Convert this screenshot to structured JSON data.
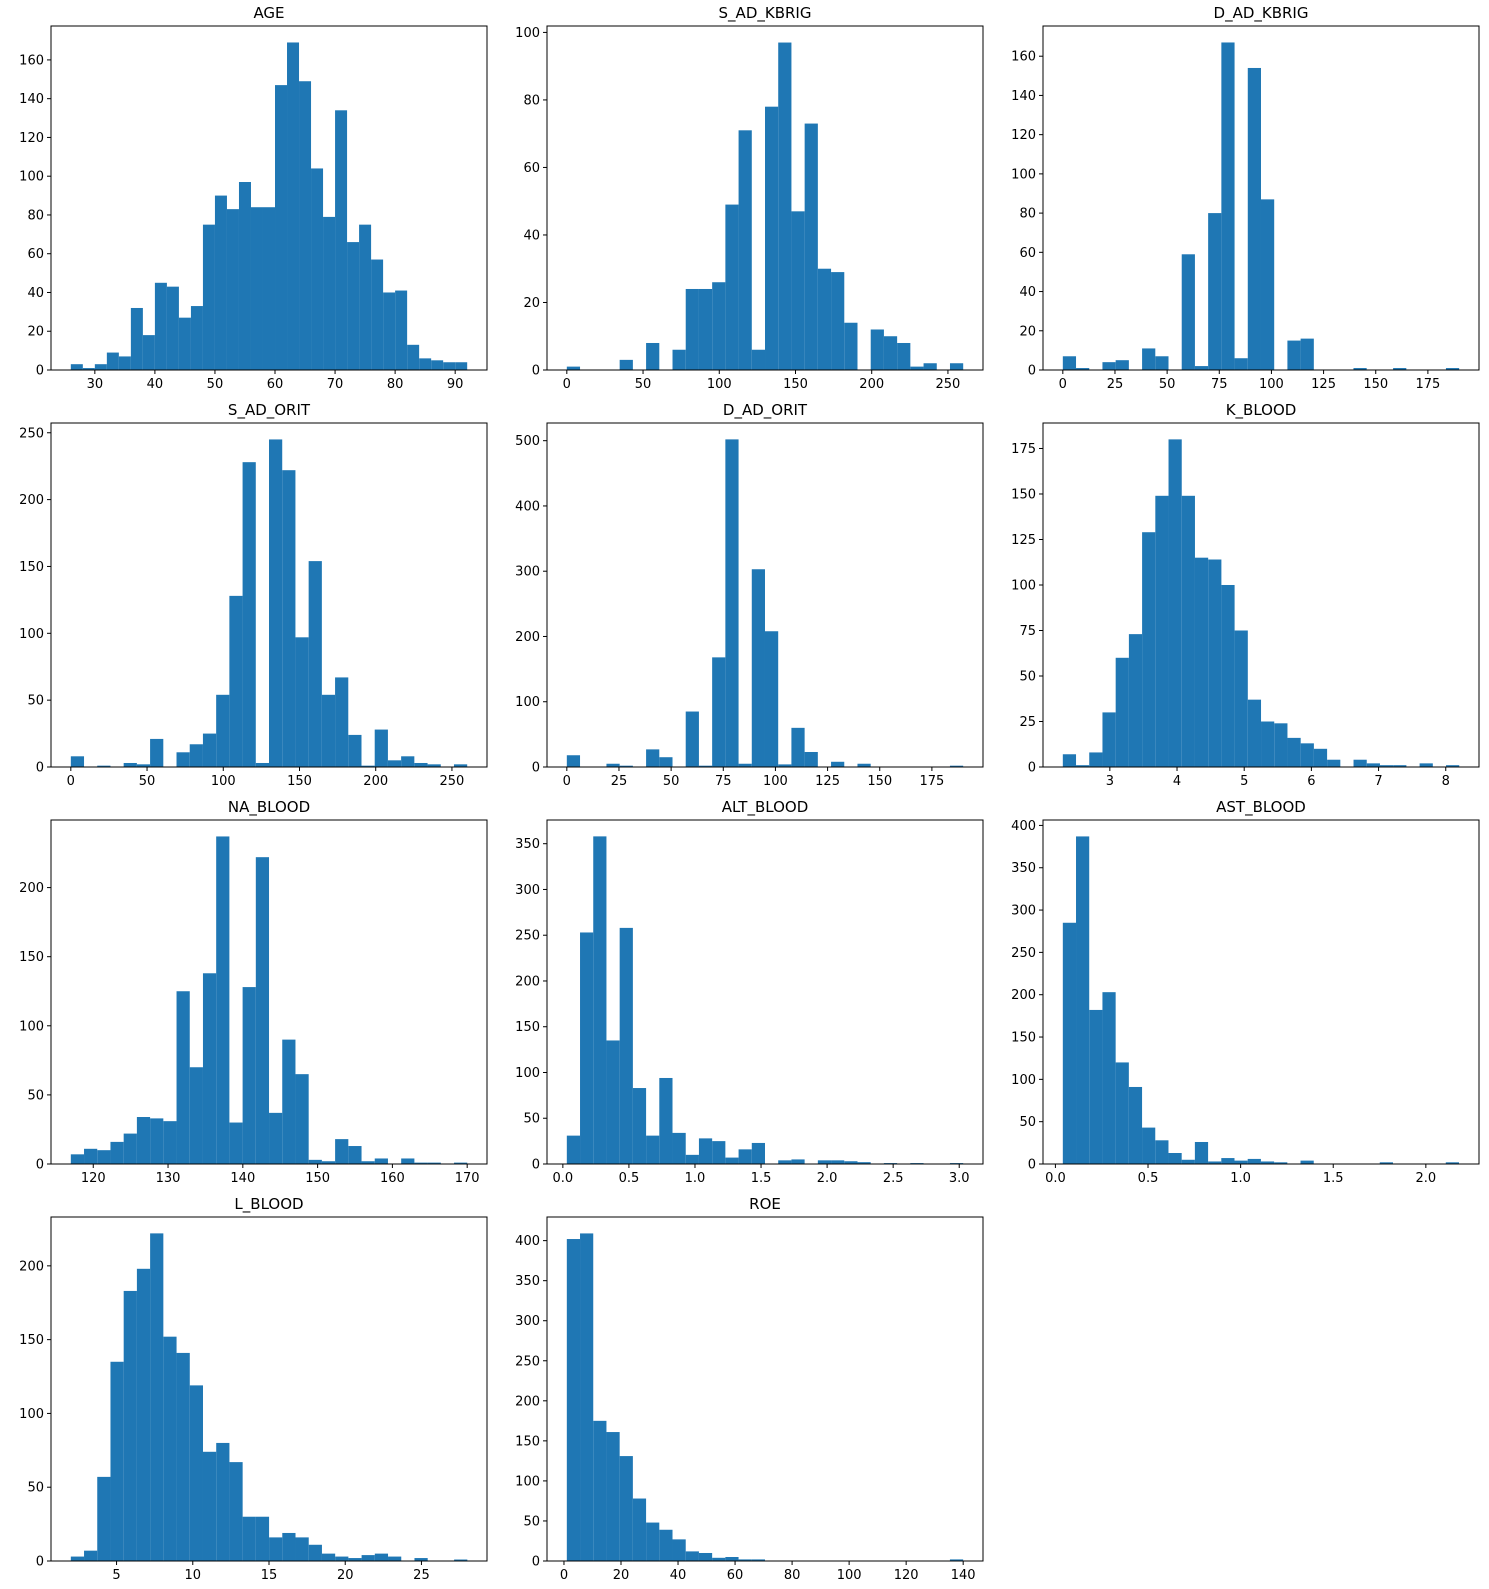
{
  "figure": {
    "background_color": "#ffffff",
    "bar_color": "#1f77b4",
    "axis_color": "#000000",
    "text_color": "#000000",
    "grid": "off",
    "legend": "none",
    "layout": "4 rows x 3 columns, 11 histograms, last cell empty"
  },
  "chart_data": [
    {
      "type": "bar",
      "subtype": "histogram",
      "title": "AGE",
      "bin_start": 26,
      "bin_width": 2,
      "values": [
        3,
        1,
        3,
        9,
        7,
        32,
        18,
        45,
        43,
        27,
        33,
        75,
        90,
        83,
        97,
        84,
        84,
        147,
        169,
        149,
        104,
        79,
        134,
        66,
        75,
        57,
        40,
        41,
        13,
        6,
        5,
        4,
        4
      ],
      "xlim": [
        22.7,
        95.3
      ],
      "ylim": [
        0,
        177.5
      ],
      "xtick_values": [
        30,
        40,
        50,
        60,
        70,
        80,
        90
      ],
      "xtick_labels": [
        "30",
        "40",
        "50",
        "60",
        "70",
        "80",
        "90"
      ],
      "ytick_values": [
        0,
        20,
        40,
        60,
        80,
        100,
        120,
        140,
        160
      ],
      "ytick_labels": [
        "0",
        "20",
        "40",
        "60",
        "80",
        "100",
        "120",
        "140",
        "160"
      ]
    },
    {
      "type": "bar",
      "subtype": "histogram",
      "title": "S_AD_KBRIG",
      "bin_start": 0,
      "bin_width": 8.667,
      "values": [
        1,
        0,
        0,
        0,
        3,
        0,
        8,
        0,
        6,
        24,
        24,
        26,
        49,
        71,
        6,
        78,
        97,
        47,
        73,
        30,
        29,
        14,
        0,
        12,
        10,
        8,
        1,
        2,
        0,
        2
      ],
      "xlim": [
        -13,
        273
      ],
      "ylim": [
        0,
        101.9
      ],
      "xtick_values": [
        0,
        50,
        100,
        150,
        200,
        250
      ],
      "xtick_labels": [
        "0",
        "50",
        "100",
        "150",
        "200",
        "250"
      ],
      "ytick_values": [
        0,
        20,
        40,
        60,
        80,
        100
      ],
      "ytick_labels": [
        "0",
        "20",
        "40",
        "60",
        "80",
        "100"
      ]
    },
    {
      "type": "bar",
      "subtype": "histogram",
      "title": "D_AD_KBRIG",
      "bin_start": 0,
      "bin_width": 6.333,
      "values": [
        7,
        1,
        0,
        4,
        5,
        0,
        11,
        7,
        0,
        59,
        2,
        80,
        167,
        6,
        154,
        87,
        0,
        15,
        16,
        0,
        0,
        0,
        1,
        0,
        0,
        1,
        0,
        0,
        0,
        1
      ],
      "xlim": [
        -9.5,
        199.5
      ],
      "ylim": [
        0,
        175.4
      ],
      "xtick_values": [
        0,
        25,
        50,
        75,
        100,
        125,
        150,
        175
      ],
      "xtick_labels": [
        "0",
        "25",
        "50",
        "75",
        "100",
        "125",
        "150",
        "175"
      ],
      "ytick_values": [
        0,
        20,
        40,
        60,
        80,
        100,
        120,
        140,
        160
      ],
      "ytick_labels": [
        "0",
        "20",
        "40",
        "60",
        "80",
        "100",
        "120",
        "140",
        "160"
      ]
    },
    {
      "type": "bar",
      "subtype": "histogram",
      "title": "S_AD_ORIT",
      "bin_start": 0,
      "bin_width": 8.667,
      "values": [
        8,
        0,
        1,
        0,
        3,
        2,
        21,
        0,
        11,
        17,
        25,
        54,
        128,
        228,
        3,
        245,
        222,
        97,
        154,
        54,
        67,
        24,
        1,
        28,
        5,
        8,
        3,
        2,
        0,
        2
      ],
      "xlim": [
        -13,
        273
      ],
      "ylim": [
        0,
        257.3
      ],
      "xtick_values": [
        0,
        50,
        100,
        150,
        200,
        250
      ],
      "xtick_labels": [
        "0",
        "50",
        "100",
        "150",
        "200",
        "250"
      ],
      "ytick_values": [
        0,
        50,
        100,
        150,
        200,
        250
      ],
      "ytick_labels": [
        "0",
        "50",
        "100",
        "150",
        "200",
        "250"
      ]
    },
    {
      "type": "bar",
      "subtype": "histogram",
      "title": "D_AD_ORIT",
      "bin_start": 0,
      "bin_width": 6.333,
      "values": [
        18,
        0,
        0,
        5,
        2,
        0,
        27,
        15,
        0,
        85,
        2,
        168,
        502,
        5,
        303,
        208,
        4,
        60,
        23,
        0,
        8,
        0,
        5,
        0,
        0,
        0,
        0,
        0,
        0,
        2
      ],
      "xlim": [
        -9.5,
        199.5
      ],
      "ylim": [
        0,
        527.1
      ],
      "xtick_values": [
        0,
        25,
        50,
        75,
        100,
        125,
        150,
        175
      ],
      "xtick_labels": [
        "0",
        "25",
        "50",
        "75",
        "100",
        "125",
        "150",
        "175"
      ],
      "ytick_values": [
        0,
        100,
        200,
        300,
        400,
        500
      ],
      "ytick_labels": [
        "0",
        "100",
        "200",
        "300",
        "400",
        "500"
      ]
    },
    {
      "type": "bar",
      "subtype": "histogram",
      "title": "K_BLOOD",
      "bin_start": 2.3,
      "bin_width": 0.1967,
      "values": [
        7,
        1,
        8,
        30,
        60,
        73,
        129,
        149,
        180,
        149,
        115,
        114,
        100,
        75,
        37,
        25,
        24,
        16,
        13,
        10,
        4,
        0,
        4,
        2,
        1,
        1,
        0,
        2,
        0,
        1
      ],
      "xlim": [
        2.005,
        8.495
      ],
      "ylim": [
        0,
        189
      ],
      "xtick_values": [
        3,
        4,
        5,
        6,
        7,
        8
      ],
      "xtick_labels": [
        "3",
        "4",
        "5",
        "6",
        "7",
        "8"
      ],
      "ytick_values": [
        0,
        25,
        50,
        75,
        100,
        125,
        150,
        175
      ],
      "ytick_labels": [
        "0",
        "25",
        "50",
        "75",
        "100",
        "125",
        "150",
        "175"
      ]
    },
    {
      "type": "bar",
      "subtype": "histogram",
      "title": "NA_BLOOD",
      "bin_start": 117,
      "bin_width": 1.767,
      "values": [
        7,
        11,
        10,
        16,
        22,
        34,
        33,
        31,
        125,
        70,
        138,
        237,
        30,
        128,
        222,
        37,
        90,
        65,
        3,
        2,
        18,
        13,
        2,
        4,
        0,
        4,
        1,
        1,
        0,
        1
      ],
      "xlim": [
        114.35,
        172.65
      ],
      "ylim": [
        0,
        248.9
      ],
      "xtick_values": [
        120,
        130,
        140,
        150,
        160,
        170
      ],
      "xtick_labels": [
        "120",
        "130",
        "140",
        "150",
        "160",
        "170"
      ],
      "ytick_values": [
        0,
        50,
        100,
        150,
        200
      ],
      "ytick_labels": [
        "0",
        "50",
        "100",
        "150",
        "200"
      ]
    },
    {
      "type": "bar",
      "subtype": "histogram",
      "title": "ALT_BLOOD",
      "bin_start": 0.03,
      "bin_width": 0.1,
      "values": [
        31,
        253,
        358,
        135,
        258,
        83,
        31,
        94,
        34,
        10,
        28,
        25,
        7,
        16,
        23,
        0,
        4,
        5,
        0,
        4,
        4,
        3,
        2,
        0,
        1,
        0,
        1,
        0,
        0,
        1
      ],
      "xlim": [
        -0.12,
        3.18
      ],
      "ylim": [
        0,
        375.9
      ],
      "xtick_values": [
        0.0,
        0.5,
        1.0,
        1.5,
        2.0,
        2.5,
        3.0
      ],
      "xtick_labels": [
        "0.0",
        "0.5",
        "1.0",
        "1.5",
        "2.0",
        "2.5",
        "3.0"
      ],
      "ytick_values": [
        0,
        50,
        100,
        150,
        200,
        250,
        300,
        350
      ],
      "ytick_labels": [
        "0",
        "50",
        "100",
        "150",
        "200",
        "250",
        "300",
        "350"
      ]
    },
    {
      "type": "bar",
      "subtype": "histogram",
      "title": "AST_BLOOD",
      "bin_start": 0.04,
      "bin_width": 0.0713,
      "values": [
        285,
        387,
        182,
        203,
        120,
        91,
        43,
        28,
        13,
        5,
        26,
        3,
        7,
        4,
        6,
        3,
        2,
        0,
        4,
        0,
        0,
        0,
        0,
        0,
        2,
        0,
        0,
        0,
        0,
        2
      ],
      "xlim": [
        -0.067,
        2.287
      ],
      "ylim": [
        0,
        406.4
      ],
      "xtick_values": [
        0.0,
        0.5,
        1.0,
        1.5,
        2.0
      ],
      "xtick_labels": [
        "0.0",
        "0.5",
        "1.0",
        "1.5",
        "2.0"
      ],
      "ytick_values": [
        0,
        50,
        100,
        150,
        200,
        250,
        300,
        350,
        400
      ],
      "ytick_labels": [
        "0",
        "50",
        "100",
        "150",
        "200",
        "250",
        "300",
        "350",
        "400"
      ]
    },
    {
      "type": "bar",
      "subtype": "histogram",
      "title": "L_BLOOD",
      "bin_start": 2.0,
      "bin_width": 0.867,
      "values": [
        3,
        7,
        57,
        135,
        183,
        198,
        222,
        152,
        141,
        119,
        74,
        80,
        67,
        30,
        30,
        16,
        19,
        16,
        11,
        5,
        3,
        2,
        4,
        5,
        3,
        0,
        2,
        0,
        0,
        1
      ],
      "xlim": [
        0.7,
        29.3
      ],
      "ylim": [
        0,
        233.1
      ],
      "xtick_values": [
        5,
        10,
        15,
        20,
        25
      ],
      "xtick_labels": [
        "5",
        "10",
        "15",
        "20",
        "25"
      ],
      "ytick_values": [
        0,
        50,
        100,
        150,
        200
      ],
      "ytick_labels": [
        "0",
        "50",
        "100",
        "150",
        "200"
      ]
    },
    {
      "type": "bar",
      "subtype": "histogram",
      "title": "ROE",
      "bin_start": 1,
      "bin_width": 4.633,
      "values": [
        402,
        409,
        175,
        161,
        131,
        78,
        48,
        39,
        27,
        12,
        10,
        4,
        5,
        2,
        2,
        0,
        0,
        0,
        0,
        0,
        0,
        0,
        0,
        0,
        0,
        0,
        0,
        0,
        0,
        2
      ],
      "xlim": [
        -5.95,
        146.95
      ],
      "ylim": [
        0,
        429.5
      ],
      "xtick_values": [
        0,
        20,
        40,
        60,
        80,
        100,
        120,
        140
      ],
      "xtick_labels": [
        "0",
        "20",
        "40",
        "60",
        "80",
        "100",
        "120",
        "140"
      ],
      "ytick_values": [
        0,
        50,
        100,
        150,
        200,
        250,
        300,
        350,
        400
      ],
      "ytick_labels": [
        "0",
        "50",
        "100",
        "150",
        "200",
        "250",
        "300",
        "350",
        "400"
      ]
    }
  ]
}
